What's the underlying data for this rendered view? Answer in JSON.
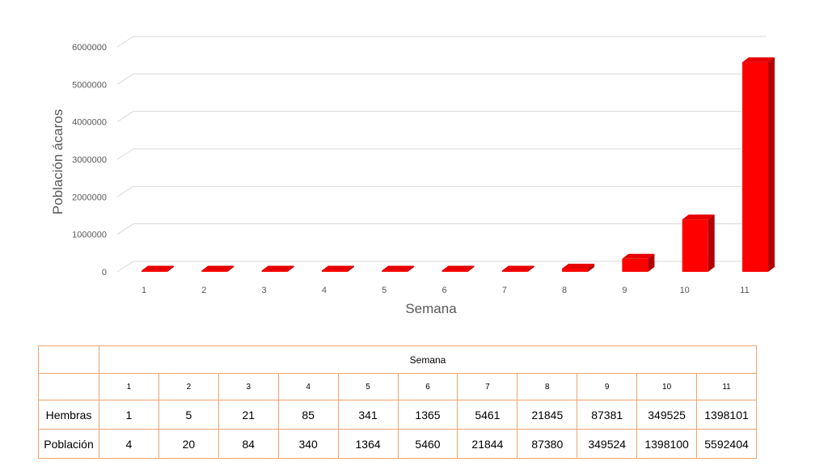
{
  "chart_data": {
    "type": "bar",
    "categories": [
      "1",
      "2",
      "3",
      "4",
      "5",
      "6",
      "7",
      "8",
      "9",
      "10",
      "11"
    ],
    "values": [
      4,
      20,
      84,
      340,
      1364,
      5460,
      21844,
      87380,
      349524,
      1398100,
      5592404
    ],
    "xlabel": "Semana",
    "ylabel": "Población ácaros",
    "ylim": [
      0,
      6000000
    ],
    "yticks": [
      "0",
      "1000000",
      "2000000",
      "3000000",
      "4000000",
      "5000000",
      "6000000"
    ],
    "grid": true,
    "bar_color": "#ff0000"
  },
  "table": {
    "header": "Semana",
    "weeks": [
      "1",
      "2",
      "3",
      "4",
      "5",
      "6",
      "7",
      "8",
      "9",
      "10",
      "11"
    ],
    "rows": [
      {
        "label": "Hembras",
        "values": [
          "1",
          "5",
          "21",
          "85",
          "341",
          "1365",
          "5461",
          "21845",
          "87381",
          "349525",
          "1398101"
        ]
      },
      {
        "label": "Población",
        "values": [
          "4",
          "20",
          "84",
          "340",
          "1364",
          "5460",
          "21844",
          "87380",
          "349524",
          "1398100",
          "5592404"
        ]
      }
    ],
    "border_color": "#f0a46c"
  }
}
